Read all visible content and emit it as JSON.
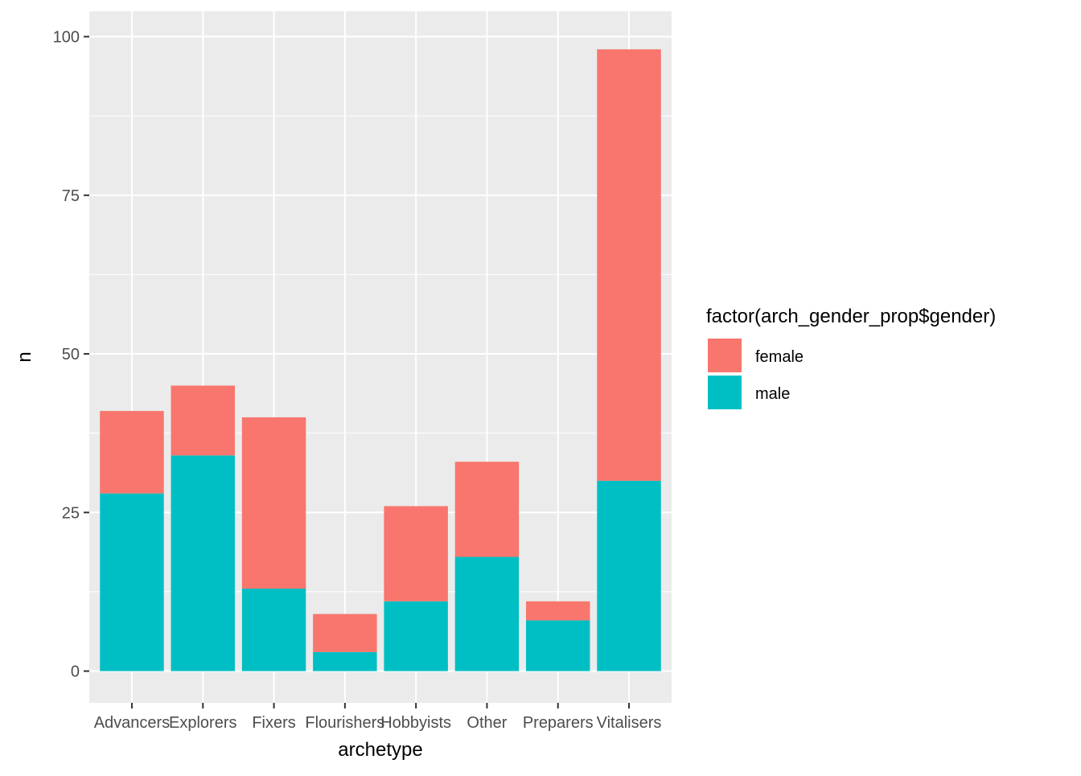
{
  "chart_data": {
    "type": "bar",
    "stacked": true,
    "categories": [
      "Advancers",
      "Explorers",
      "Fixers",
      "Flourishers",
      "Hobbyists",
      "Other",
      "Preparers",
      "Vitalisers"
    ],
    "series": [
      {
        "name": "male",
        "color": "#00BFC4",
        "values": [
          28,
          34,
          13,
          3,
          11,
          18,
          8,
          30
        ]
      },
      {
        "name": "female",
        "color": "#F8766D",
        "values": [
          13,
          11,
          27,
          6,
          15,
          15,
          3,
          68
        ]
      }
    ],
    "title": "",
    "xlabel": "archetype",
    "ylabel": "n",
    "ylim": [
      -5,
      104
    ],
    "y_ticks": [
      0,
      25,
      50,
      75,
      100
    ],
    "grid": true,
    "panel_background": "#EBEBEB",
    "legend": {
      "title": "factor(arch_gender_prop$gender)",
      "placement": "right",
      "entries": [
        {
          "label": "female",
          "color": "#F8766D"
        },
        {
          "label": "male",
          "color": "#00BFC4"
        }
      ]
    }
  }
}
